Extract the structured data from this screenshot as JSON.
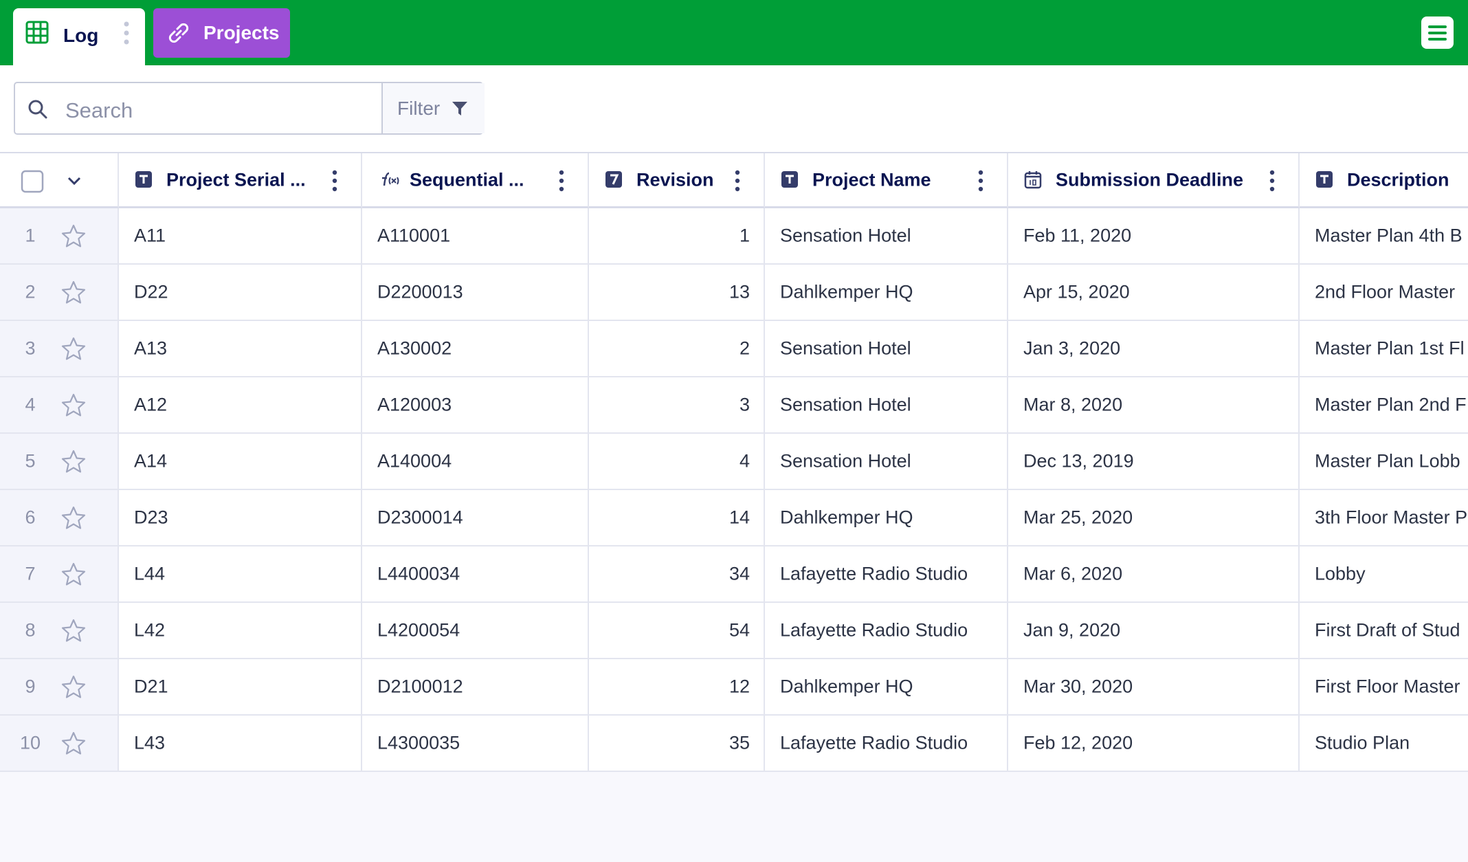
{
  "tabs": [
    "Log",
    "Projects"
  ],
  "search": {
    "placeholder": "Search",
    "filter": "Filter"
  },
  "table": {
    "columns": [
      "Project Serial ...",
      "Sequential ...",
      "Revision",
      "Project Name",
      "Submission Deadline",
      "Description"
    ],
    "rows": [
      {
        "number": 1,
        "cells": [
          "A11",
          "A110001",
          1,
          "Sensation Hotel",
          "Feb 11, 2020",
          "Master Plan 4th B"
        ]
      },
      {
        "number": 2,
        "cells": [
          "D22",
          "D2200013",
          13,
          "Dahlkemper HQ",
          "Apr 15, 2020",
          "2nd Floor Master"
        ]
      },
      {
        "number": 3,
        "cells": [
          "A13",
          "A130002",
          2,
          "Sensation Hotel",
          "Jan 3, 2020",
          "Master Plan 1st Fl"
        ]
      },
      {
        "number": 4,
        "cells": [
          "A12",
          "A120003",
          3,
          "Sensation Hotel",
          "Mar 8, 2020",
          "Master Plan 2nd F"
        ]
      },
      {
        "number": 5,
        "cells": [
          "A14",
          "A140004",
          4,
          "Sensation Hotel",
          "Dec 13, 2019",
          "Master Plan Lobb"
        ]
      },
      {
        "number": 6,
        "cells": [
          "D23",
          "D2300014",
          14,
          "Dahlkemper HQ",
          "Mar 25, 2020",
          "3th Floor Master P"
        ]
      },
      {
        "number": 7,
        "cells": [
          "L44",
          "L4400034",
          34,
          "Lafayette Radio Studio",
          "Mar 6, 2020",
          "Lobby"
        ]
      },
      {
        "number": 8,
        "cells": [
          "L42",
          "L4200054",
          54,
          "Lafayette Radio Studio",
          "Jan 9, 2020",
          "First Draft of Stud"
        ]
      },
      {
        "number": 9,
        "cells": [
          "D21",
          "D2100012",
          12,
          "Dahlkemper HQ",
          "Mar 30, 2020",
          "First Floor Master"
        ]
      },
      {
        "number": 10,
        "cells": [
          "L43",
          "L4300035",
          35,
          "Lafayette Radio Studio",
          "Feb 12, 2020",
          "Studio Plan"
        ]
      }
    ]
  }
}
